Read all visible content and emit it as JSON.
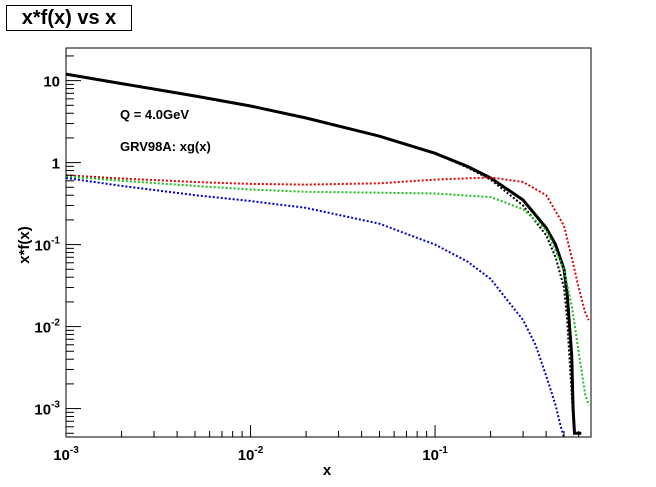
{
  "title": "x*f(x) vs x",
  "chart_data": {
    "type": "line",
    "title": "x*f(x) vs x",
    "xlabel": "x",
    "ylabel": "x*f(x)",
    "xscale": "log",
    "yscale": "log",
    "xlim": [
      0.001,
      0.7
    ],
    "ylim": [
      0.00045,
      25
    ],
    "grid": false,
    "x_ticks": [
      {
        "value": 0.001,
        "base": "10",
        "exp": "-3"
      },
      {
        "value": 0.01,
        "base": "10",
        "exp": "-2"
      },
      {
        "value": 0.1,
        "base": "10",
        "exp": "-1"
      }
    ],
    "y_ticks": [
      {
        "value": 0.001,
        "base": "10",
        "exp": "-3"
      },
      {
        "value": 0.01,
        "base": "10",
        "exp": "-2"
      },
      {
        "value": 0.1,
        "base": "10",
        "exp": "-1"
      },
      {
        "value": 1,
        "base": "1",
        "exp": ""
      },
      {
        "value": 10,
        "base": "10",
        "exp": ""
      }
    ],
    "annotations": [
      "Q = 4.0GeV",
      "GRV98A: xg(x)"
    ],
    "series": [
      {
        "color": "#000000",
        "style": "solid",
        "width": 3.0,
        "points": [
          [
            0.001,
            12.0
          ],
          [
            0.002,
            9.2
          ],
          [
            0.005,
            6.5
          ],
          [
            0.01,
            4.9
          ],
          [
            0.02,
            3.5
          ],
          [
            0.05,
            2.1
          ],
          [
            0.1,
            1.3
          ],
          [
            0.15,
            0.9
          ],
          [
            0.2,
            0.65
          ],
          [
            0.3,
            0.35
          ],
          [
            0.4,
            0.16
          ],
          [
            0.45,
            0.1
          ],
          [
            0.5,
            0.05
          ],
          [
            0.52,
            0.025
          ],
          [
            0.55,
            0.0045
          ],
          [
            0.56,
            0.001
          ],
          [
            0.57,
            0.0005
          ],
          [
            0.62,
            0.0005
          ]
        ]
      },
      {
        "color": "#000000",
        "style": "dotted",
        "width": 2.0,
        "points": [
          [
            0.001,
            12.0
          ],
          [
            0.002,
            9.2
          ],
          [
            0.005,
            6.5
          ],
          [
            0.01,
            4.9
          ],
          [
            0.02,
            3.5
          ],
          [
            0.05,
            2.1
          ],
          [
            0.1,
            1.3
          ],
          [
            0.15,
            0.87
          ],
          [
            0.2,
            0.62
          ],
          [
            0.3,
            0.3
          ],
          [
            0.4,
            0.13
          ],
          [
            0.45,
            0.07
          ],
          [
            0.5,
            0.03
          ],
          [
            0.52,
            0.012
          ],
          [
            0.54,
            0.003
          ],
          [
            0.56,
            0.0008
          ],
          [
            0.57,
            0.0005
          ],
          [
            0.62,
            0.0005
          ]
        ]
      },
      {
        "color": "#dd0000",
        "style": "dotted",
        "width": 2.0,
        "points": [
          [
            0.001,
            0.7
          ],
          [
            0.002,
            0.64
          ],
          [
            0.005,
            0.58
          ],
          [
            0.01,
            0.55
          ],
          [
            0.02,
            0.54
          ],
          [
            0.05,
            0.56
          ],
          [
            0.1,
            0.62
          ],
          [
            0.2,
            0.66
          ],
          [
            0.3,
            0.58
          ],
          [
            0.4,
            0.4
          ],
          [
            0.5,
            0.17
          ],
          [
            0.55,
            0.07
          ],
          [
            0.6,
            0.03
          ],
          [
            0.65,
            0.015
          ],
          [
            0.68,
            0.012
          ]
        ]
      },
      {
        "color": "#22bb22",
        "style": "dotted",
        "width": 2.0,
        "points": [
          [
            0.001,
            0.68
          ],
          [
            0.002,
            0.6
          ],
          [
            0.005,
            0.52
          ],
          [
            0.01,
            0.47
          ],
          [
            0.02,
            0.44
          ],
          [
            0.05,
            0.43
          ],
          [
            0.1,
            0.42
          ],
          [
            0.2,
            0.38
          ],
          [
            0.3,
            0.27
          ],
          [
            0.4,
            0.15
          ],
          [
            0.5,
            0.05
          ],
          [
            0.55,
            0.018
          ],
          [
            0.6,
            0.005
          ],
          [
            0.65,
            0.0015
          ],
          [
            0.68,
            0.0011
          ]
        ]
      },
      {
        "color": "#0000cc",
        "style": "dotted",
        "width": 2.0,
        "points": [
          [
            0.001,
            0.65
          ],
          [
            0.002,
            0.52
          ],
          [
            0.005,
            0.4
          ],
          [
            0.01,
            0.34
          ],
          [
            0.02,
            0.28
          ],
          [
            0.05,
            0.18
          ],
          [
            0.1,
            0.1
          ],
          [
            0.15,
            0.062
          ],
          [
            0.2,
            0.038
          ],
          [
            0.3,
            0.012
          ],
          [
            0.35,
            0.006
          ],
          [
            0.4,
            0.0025
          ],
          [
            0.45,
            0.0011
          ],
          [
            0.48,
            0.0006
          ],
          [
            0.5,
            0.00045
          ]
        ]
      }
    ]
  }
}
